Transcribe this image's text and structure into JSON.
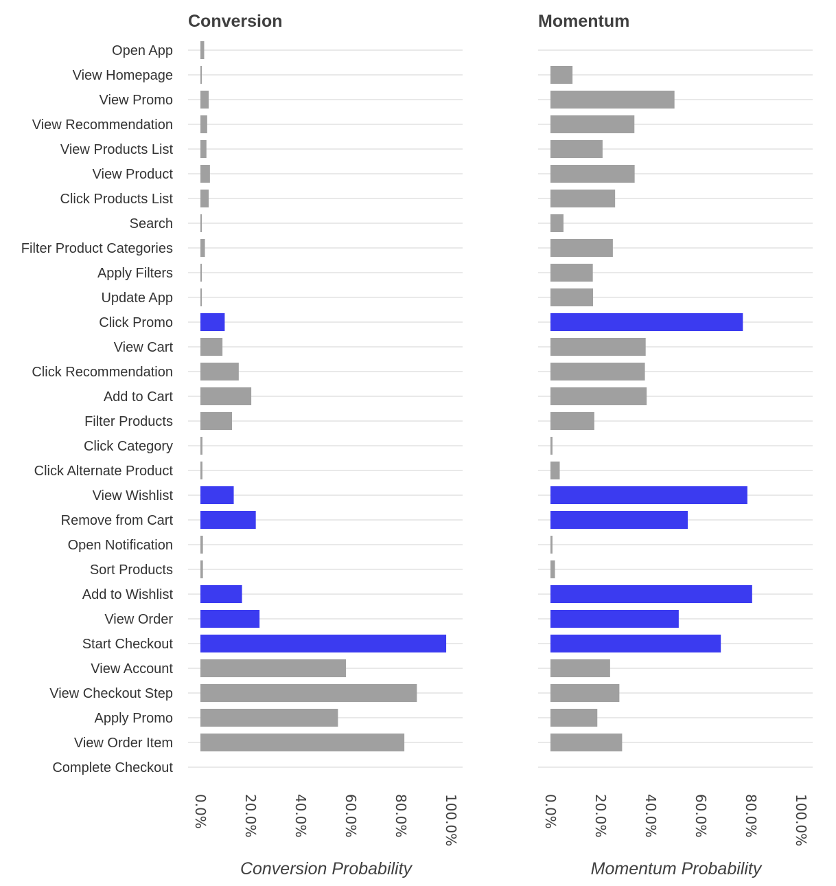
{
  "chart_data": {
    "type": "bar",
    "orientation": "horizontal",
    "grid": true,
    "categories": [
      "Open App",
      "View Homepage",
      "View Promo",
      "View Recommendation",
      "View Products List",
      "View Product",
      "Click Products List",
      "Search",
      "Filter Product Categories",
      "Apply Filters",
      "Update App",
      "Click Promo",
      "View Cart",
      "Click Recommendation",
      "Add to Cart",
      "Filter Products",
      "Click Category",
      "Click Alternate Product",
      "View Wishlist",
      "Remove from Cart",
      "Open Notification",
      "Sort Products",
      "Add to Wishlist",
      "View Order",
      "Start Checkout",
      "View Account",
      "View Checkout Step",
      "Apply Promo",
      "View Order Item",
      "Complete Checkout"
    ],
    "highlight_color": "#3b3bf0",
    "base_color": "#a0a0a0",
    "highlighted": [
      false,
      false,
      false,
      false,
      false,
      false,
      false,
      false,
      false,
      false,
      false,
      true,
      false,
      false,
      false,
      false,
      false,
      false,
      true,
      true,
      false,
      false,
      true,
      true,
      true,
      false,
      false,
      false,
      false,
      false
    ],
    "ticks": [
      "0.0%",
      "20.0%",
      "40.0%",
      "60.0%",
      "80.0%",
      "100.0%"
    ],
    "xlim": [
      0,
      1.0
    ],
    "panels": [
      {
        "title": "Conversion",
        "xlabel": "Conversion Probability",
        "values": [
          0.015,
          0.002,
          0.033,
          0.027,
          0.024,
          0.038,
          0.033,
          0.005,
          0.018,
          0.005,
          0.005,
          0.097,
          0.088,
          0.153,
          0.203,
          0.126,
          0.008,
          0.008,
          0.133,
          0.221,
          0.01,
          0.01,
          0.166,
          0.236,
          0.981,
          0.581,
          0.864,
          0.549,
          0.814,
          null
        ]
      },
      {
        "title": "Momentum",
        "xlabel": "Momentum Probability",
        "values": [
          null,
          0.088,
          0.495,
          0.335,
          0.208,
          0.336,
          0.258,
          0.052,
          0.249,
          0.169,
          0.17,
          0.768,
          0.38,
          0.377,
          0.384,
          0.175,
          0.008,
          0.037,
          0.786,
          0.548,
          0.008,
          0.018,
          0.805,
          0.512,
          0.68,
          0.238,
          0.275,
          0.187,
          0.286,
          null
        ]
      }
    ]
  }
}
